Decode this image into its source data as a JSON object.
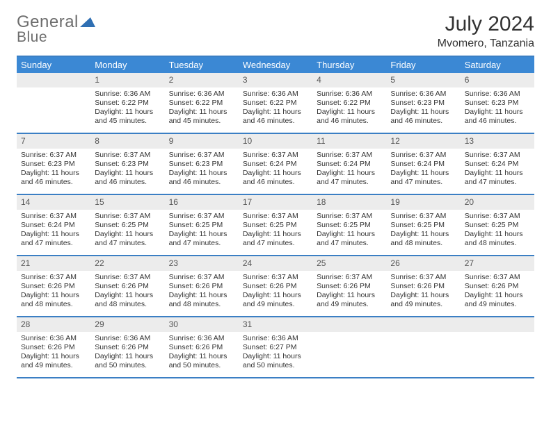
{
  "logo": {
    "text1": "General",
    "text2": "Blue"
  },
  "title": "July 2024",
  "location": "Mvomero, Tanzania",
  "colors": {
    "header_bg": "#3b88d4",
    "header_text": "#ffffff",
    "border": "#3b7fc4",
    "daynum_bg": "#ececec",
    "daynum_text": "#555555",
    "body_text": "#333333",
    "logo_gray": "#6d6d6d",
    "logo_dark": "#4a4a4a",
    "logo_blue": "#2f6fb3"
  },
  "weekdays": [
    "Sunday",
    "Monday",
    "Tuesday",
    "Wednesday",
    "Thursday",
    "Friday",
    "Saturday"
  ],
  "weeks": [
    {
      "nums": [
        "",
        "1",
        "2",
        "3",
        "4",
        "5",
        "6"
      ],
      "cells": [
        null,
        {
          "sunrise": "Sunrise: 6:36 AM",
          "sunset": "Sunset: 6:22 PM",
          "daylight": "Daylight: 11 hours and 45 minutes."
        },
        {
          "sunrise": "Sunrise: 6:36 AM",
          "sunset": "Sunset: 6:22 PM",
          "daylight": "Daylight: 11 hours and 45 minutes."
        },
        {
          "sunrise": "Sunrise: 6:36 AM",
          "sunset": "Sunset: 6:22 PM",
          "daylight": "Daylight: 11 hours and 46 minutes."
        },
        {
          "sunrise": "Sunrise: 6:36 AM",
          "sunset": "Sunset: 6:22 PM",
          "daylight": "Daylight: 11 hours and 46 minutes."
        },
        {
          "sunrise": "Sunrise: 6:36 AM",
          "sunset": "Sunset: 6:23 PM",
          "daylight": "Daylight: 11 hours and 46 minutes."
        },
        {
          "sunrise": "Sunrise: 6:36 AM",
          "sunset": "Sunset: 6:23 PM",
          "daylight": "Daylight: 11 hours and 46 minutes."
        }
      ]
    },
    {
      "nums": [
        "7",
        "8",
        "9",
        "10",
        "11",
        "12",
        "13"
      ],
      "cells": [
        {
          "sunrise": "Sunrise: 6:37 AM",
          "sunset": "Sunset: 6:23 PM",
          "daylight": "Daylight: 11 hours and 46 minutes."
        },
        {
          "sunrise": "Sunrise: 6:37 AM",
          "sunset": "Sunset: 6:23 PM",
          "daylight": "Daylight: 11 hours and 46 minutes."
        },
        {
          "sunrise": "Sunrise: 6:37 AM",
          "sunset": "Sunset: 6:23 PM",
          "daylight": "Daylight: 11 hours and 46 minutes."
        },
        {
          "sunrise": "Sunrise: 6:37 AM",
          "sunset": "Sunset: 6:24 PM",
          "daylight": "Daylight: 11 hours and 46 minutes."
        },
        {
          "sunrise": "Sunrise: 6:37 AM",
          "sunset": "Sunset: 6:24 PM",
          "daylight": "Daylight: 11 hours and 47 minutes."
        },
        {
          "sunrise": "Sunrise: 6:37 AM",
          "sunset": "Sunset: 6:24 PM",
          "daylight": "Daylight: 11 hours and 47 minutes."
        },
        {
          "sunrise": "Sunrise: 6:37 AM",
          "sunset": "Sunset: 6:24 PM",
          "daylight": "Daylight: 11 hours and 47 minutes."
        }
      ]
    },
    {
      "nums": [
        "14",
        "15",
        "16",
        "17",
        "18",
        "19",
        "20"
      ],
      "cells": [
        {
          "sunrise": "Sunrise: 6:37 AM",
          "sunset": "Sunset: 6:24 PM",
          "daylight": "Daylight: 11 hours and 47 minutes."
        },
        {
          "sunrise": "Sunrise: 6:37 AM",
          "sunset": "Sunset: 6:25 PM",
          "daylight": "Daylight: 11 hours and 47 minutes."
        },
        {
          "sunrise": "Sunrise: 6:37 AM",
          "sunset": "Sunset: 6:25 PM",
          "daylight": "Daylight: 11 hours and 47 minutes."
        },
        {
          "sunrise": "Sunrise: 6:37 AM",
          "sunset": "Sunset: 6:25 PM",
          "daylight": "Daylight: 11 hours and 47 minutes."
        },
        {
          "sunrise": "Sunrise: 6:37 AM",
          "sunset": "Sunset: 6:25 PM",
          "daylight": "Daylight: 11 hours and 47 minutes."
        },
        {
          "sunrise": "Sunrise: 6:37 AM",
          "sunset": "Sunset: 6:25 PM",
          "daylight": "Daylight: 11 hours and 48 minutes."
        },
        {
          "sunrise": "Sunrise: 6:37 AM",
          "sunset": "Sunset: 6:25 PM",
          "daylight": "Daylight: 11 hours and 48 minutes."
        }
      ]
    },
    {
      "nums": [
        "21",
        "22",
        "23",
        "24",
        "25",
        "26",
        "27"
      ],
      "cells": [
        {
          "sunrise": "Sunrise: 6:37 AM",
          "sunset": "Sunset: 6:26 PM",
          "daylight": "Daylight: 11 hours and 48 minutes."
        },
        {
          "sunrise": "Sunrise: 6:37 AM",
          "sunset": "Sunset: 6:26 PM",
          "daylight": "Daylight: 11 hours and 48 minutes."
        },
        {
          "sunrise": "Sunrise: 6:37 AM",
          "sunset": "Sunset: 6:26 PM",
          "daylight": "Daylight: 11 hours and 48 minutes."
        },
        {
          "sunrise": "Sunrise: 6:37 AM",
          "sunset": "Sunset: 6:26 PM",
          "daylight": "Daylight: 11 hours and 49 minutes."
        },
        {
          "sunrise": "Sunrise: 6:37 AM",
          "sunset": "Sunset: 6:26 PM",
          "daylight": "Daylight: 11 hours and 49 minutes."
        },
        {
          "sunrise": "Sunrise: 6:37 AM",
          "sunset": "Sunset: 6:26 PM",
          "daylight": "Daylight: 11 hours and 49 minutes."
        },
        {
          "sunrise": "Sunrise: 6:37 AM",
          "sunset": "Sunset: 6:26 PM",
          "daylight": "Daylight: 11 hours and 49 minutes."
        }
      ]
    },
    {
      "nums": [
        "28",
        "29",
        "30",
        "31",
        "",
        "",
        ""
      ],
      "cells": [
        {
          "sunrise": "Sunrise: 6:36 AM",
          "sunset": "Sunset: 6:26 PM",
          "daylight": "Daylight: 11 hours and 49 minutes."
        },
        {
          "sunrise": "Sunrise: 6:36 AM",
          "sunset": "Sunset: 6:26 PM",
          "daylight": "Daylight: 11 hours and 50 minutes."
        },
        {
          "sunrise": "Sunrise: 6:36 AM",
          "sunset": "Sunset: 6:26 PM",
          "daylight": "Daylight: 11 hours and 50 minutes."
        },
        {
          "sunrise": "Sunrise: 6:36 AM",
          "sunset": "Sunset: 6:27 PM",
          "daylight": "Daylight: 11 hours and 50 minutes."
        },
        null,
        null,
        null
      ]
    }
  ]
}
